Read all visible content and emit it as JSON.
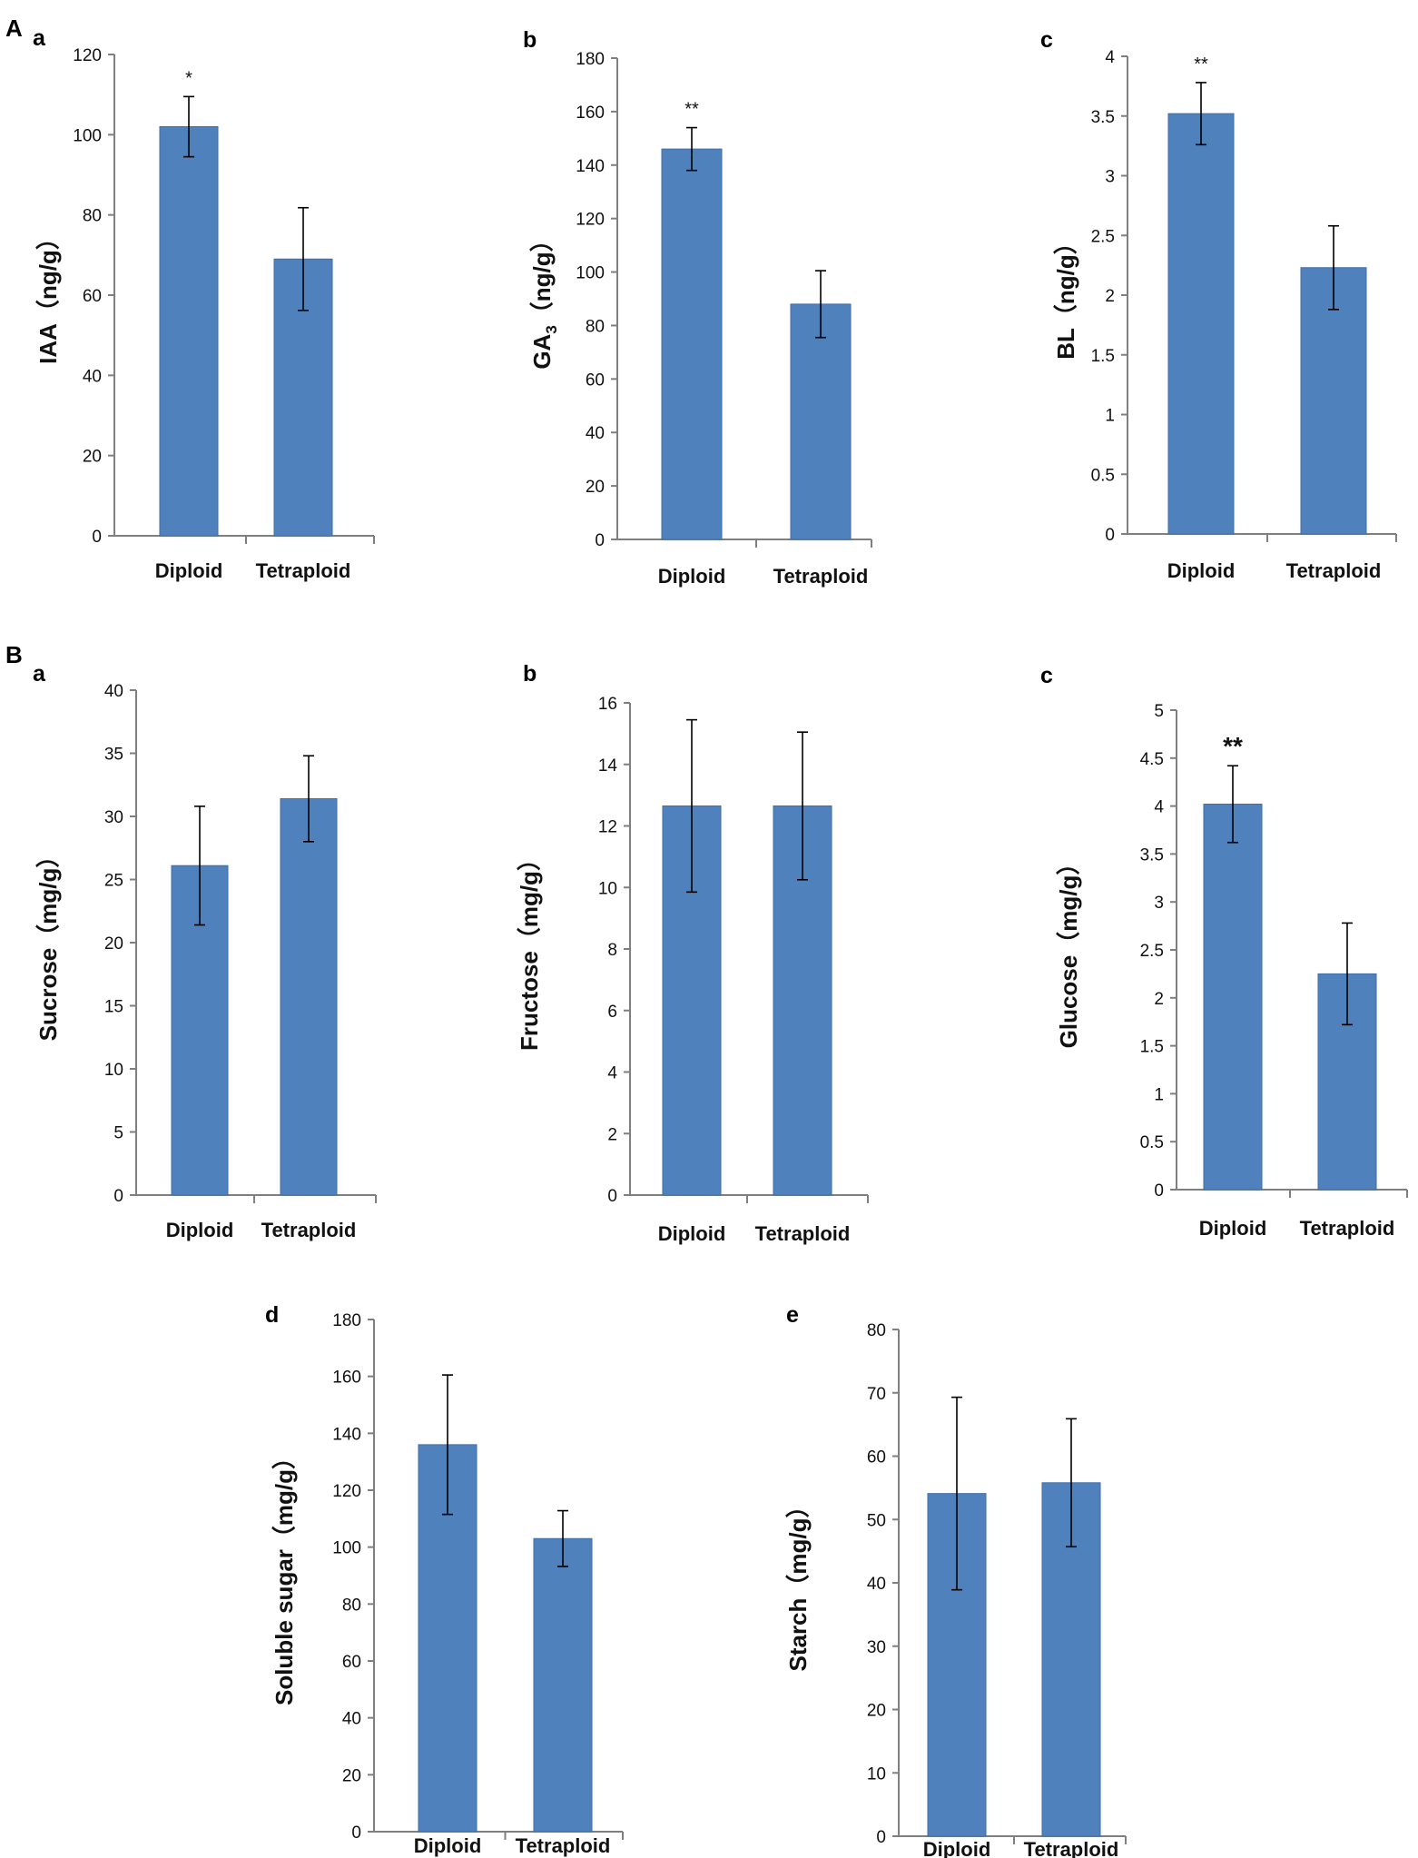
{
  "figure": {
    "panel_letters": [
      "A",
      "B"
    ],
    "colors": {
      "bar": "#4f81bd",
      "bar_edge": "#3d6ea8",
      "axis": "#7f7f7f",
      "error": "#000000"
    }
  },
  "chart_data": [
    {
      "id": "Aa",
      "type": "bar",
      "panel": "A",
      "letter": "a",
      "ylabel": "IAA（ng/g）",
      "ylabel_main": "IAA（ng/g）",
      "ylabel_sub": "",
      "ylabel_tail": "",
      "categories": [
        "Diploid",
        "Tetraploid"
      ],
      "values": [
        102,
        69
      ],
      "errors": [
        7.5,
        12.8
      ],
      "ylim": [
        0,
        120
      ],
      "yticks": [
        0,
        20,
        40,
        60,
        80,
        100,
        120
      ],
      "tick_labels": [
        "0",
        "20",
        "40",
        "60",
        "80",
        "100",
        "120"
      ],
      "significance": [
        "*",
        ""
      ]
    },
    {
      "id": "Ab",
      "type": "bar",
      "panel": "A",
      "letter": "b",
      "ylabel": "GA3（ng/g）",
      "ylabel_main": "GA",
      "ylabel_sub": "3",
      "ylabel_tail": "（ng/g）",
      "categories": [
        "Diploid",
        "Tetraploid"
      ],
      "values": [
        146,
        88
      ],
      "errors": [
        8,
        12.5
      ],
      "ylim": [
        0,
        180
      ],
      "yticks": [
        0,
        20,
        40,
        60,
        80,
        100,
        120,
        140,
        160,
        180
      ],
      "tick_labels": [
        "0",
        "20",
        "40",
        "60",
        "80",
        "100",
        "120",
        "140",
        "160",
        "180"
      ],
      "significance": [
        "**",
        ""
      ]
    },
    {
      "id": "Ac",
      "type": "bar",
      "panel": "A",
      "letter": "c",
      "ylabel": "BL（ng/g）",
      "ylabel_main": "BL（ng/g）",
      "ylabel_sub": "",
      "ylabel_tail": "",
      "categories": [
        "Diploid",
        "Tetraploid"
      ],
      "values": [
        3.52,
        2.23
      ],
      "errors": [
        0.26,
        0.35
      ],
      "ylim": [
        0,
        4
      ],
      "yticks": [
        0,
        0.5,
        1,
        1.5,
        2,
        2.5,
        3,
        3.5,
        4
      ],
      "tick_labels": [
        "0",
        "0.5",
        "1",
        "1.5",
        "2",
        "2.5",
        "3",
        "3.5",
        "4"
      ],
      "significance": [
        "**",
        ""
      ]
    },
    {
      "id": "Ba",
      "type": "bar",
      "panel": "B",
      "letter": "a",
      "ylabel": "Sucrose（mg/g）",
      "ylabel_main": "Sucrose（mg/g）",
      "ylabel_sub": "",
      "ylabel_tail": "",
      "categories": [
        "Diploid",
        "Tetraploid"
      ],
      "values": [
        26.1,
        31.4
      ],
      "errors": [
        4.7,
        3.4
      ],
      "ylim": [
        0,
        40
      ],
      "yticks": [
        0,
        5,
        10,
        15,
        20,
        25,
        30,
        35,
        40
      ],
      "tick_labels": [
        "0",
        "5",
        "10",
        "15",
        "20",
        "25",
        "30",
        "35",
        "40"
      ],
      "significance": [
        "",
        ""
      ]
    },
    {
      "id": "Bb",
      "type": "bar",
      "panel": "B",
      "letter": "b",
      "ylabel": "Fructose（mg/g）",
      "ylabel_main": "Fructose（mg/g）",
      "ylabel_sub": "",
      "ylabel_tail": "",
      "categories": [
        "Diploid",
        "Tetraploid"
      ],
      "values": [
        12.65,
        12.65
      ],
      "errors": [
        2.8,
        2.4
      ],
      "ylim": [
        0,
        16
      ],
      "yticks": [
        0,
        2,
        4,
        6,
        8,
        10,
        12,
        14,
        16
      ],
      "tick_labels": [
        "0",
        "2",
        "4",
        "6",
        "8",
        "10",
        "12",
        "14",
        "16"
      ],
      "significance": [
        "",
        ""
      ]
    },
    {
      "id": "Bc",
      "type": "bar",
      "panel": "B",
      "letter": "c",
      "ylabel": "Glucose（mg/g）",
      "ylabel_main": "Glucose（mg/g）",
      "ylabel_sub": "",
      "ylabel_tail": "",
      "categories": [
        "Diploid",
        "Tetraploid"
      ],
      "values": [
        4.02,
        2.25
      ],
      "errors": [
        0.4,
        0.53
      ],
      "ylim": [
        0,
        5
      ],
      "yticks": [
        0,
        0.5,
        1,
        1.5,
        2,
        2.5,
        3,
        3.5,
        4,
        4.5,
        5
      ],
      "tick_labels": [
        "0",
        "0.5",
        "1",
        "1.5",
        "2",
        "2.5",
        "3",
        "3.5",
        "4",
        "4.5",
        "5"
      ],
      "significance": [
        "**",
        ""
      ]
    },
    {
      "id": "Bd",
      "type": "bar",
      "panel": "B",
      "letter": "d",
      "ylabel": "Soluble sugar（mg/g）",
      "ylabel_main": "Soluble sugar（mg/g）",
      "ylabel_sub": "",
      "ylabel_tail": "",
      "categories": [
        "Diploid",
        "Tetraploid"
      ],
      "values": [
        136,
        103
      ],
      "errors": [
        24.5,
        9.8
      ],
      "ylim": [
        0,
        180
      ],
      "yticks": [
        0,
        20,
        40,
        60,
        80,
        100,
        120,
        140,
        160,
        180
      ],
      "tick_labels": [
        "0",
        "20",
        "40",
        "60",
        "80",
        "100",
        "120",
        "140",
        "160",
        "180"
      ],
      "significance": [
        "",
        ""
      ]
    },
    {
      "id": "Be",
      "type": "bar",
      "panel": "B",
      "letter": "e",
      "ylabel": "Starch（mg/g）",
      "ylabel_main": "Starch（mg/g）",
      "ylabel_sub": "",
      "ylabel_tail": "",
      "categories": [
        "Diploid",
        "Tetraploid"
      ],
      "values": [
        54.1,
        55.8
      ],
      "errors": [
        15.2,
        10.1
      ],
      "ylim": [
        0,
        80
      ],
      "yticks": [
        0,
        10,
        20,
        30,
        40,
        50,
        60,
        70,
        80
      ],
      "tick_labels": [
        "0",
        "10",
        "20",
        "30",
        "40",
        "50",
        "60",
        "70",
        "80"
      ],
      "significance": [
        "",
        ""
      ]
    }
  ]
}
